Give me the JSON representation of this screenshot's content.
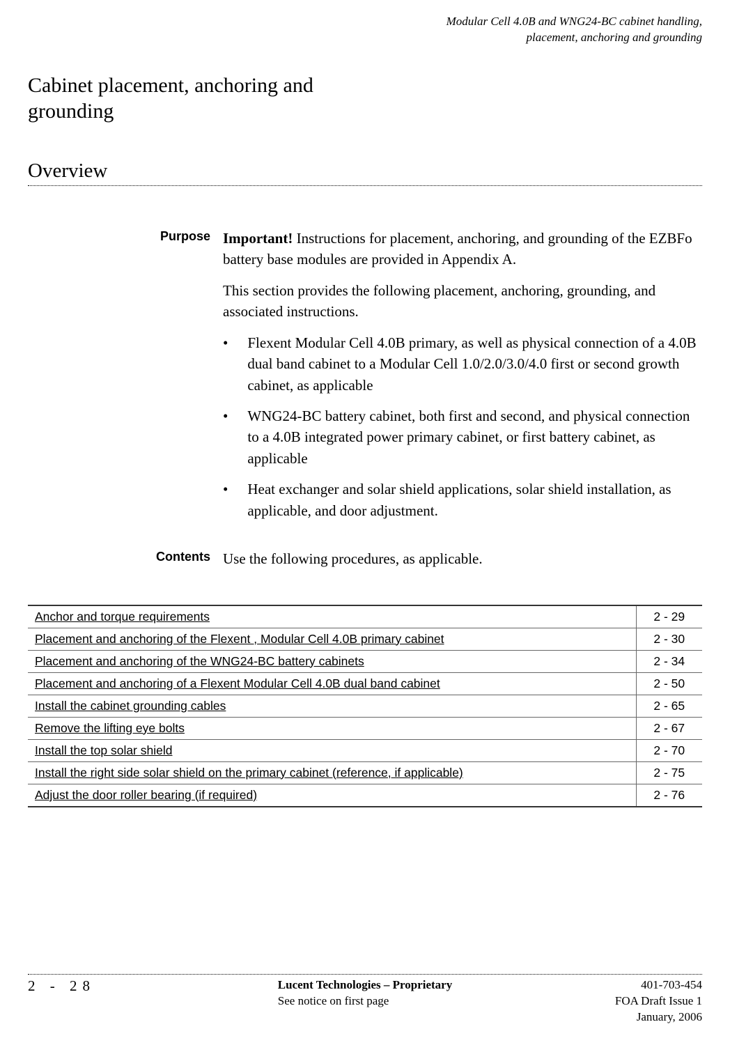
{
  "header": {
    "line1": "Modular Cell 4.0B and WNG24-BC cabinet handling,",
    "line2": "placement, anchoring and grounding"
  },
  "mainTitle": {
    "line1": "Cabinet placement, anchoring and",
    "line2": "grounding"
  },
  "overviewLabel": "Overview",
  "purpose": {
    "label": "Purpose",
    "importantLabel": "Important!",
    "importantText": " Instructions for placement, anchoring, and grounding of the EZBFo battery base modules are provided in Appendix A.",
    "intro": "This section provides the following placement, anchoring, grounding, and associated instructions.",
    "bullets": [
      "Flexent Modular Cell 4.0B primary, as well as physical connection of a 4.0B dual band cabinet to a Modular Cell 1.0/2.0/3.0/4.0 first or second growth cabinet, as applicable",
      "WNG24-BC battery cabinet, both first and second, and physical connection to a 4.0B integrated power primary cabinet, or first battery cabinet, as applicable",
      "Heat exchanger and solar shield applications, solar shield installation, as applicable, and door adjustment."
    ]
  },
  "contents": {
    "label": "Contents",
    "intro": "Use the following procedures, as applicable."
  },
  "toc": [
    {
      "title": "Anchor and torque requirements",
      "page": "2 - 29"
    },
    {
      "title": "Placement and anchoring of the Flexent , Modular Cell 4.0B primary cabinet",
      "page": "2 - 30"
    },
    {
      "title": "Placement and anchoring of the WNG24-BC battery cabinets",
      "page": "2 - 34"
    },
    {
      "title": "Placement and anchoring of a Flexent  Modular Cell 4.0B dual band cabinet",
      "page": "2 - 50"
    },
    {
      "title": "Install the cabinet grounding cables",
      "page": "2 - 65"
    },
    {
      "title": "Remove the lifting eye bolts",
      "page": "2 - 67"
    },
    {
      "title": "Install the top solar shield",
      "page": "2 - 70"
    },
    {
      "title": "Install the right side solar shield on the primary cabinet (reference, if applicable)",
      "page": "2 - 75"
    },
    {
      "title": "Adjust the door roller bearing (if required)",
      "page": "2 - 76"
    }
  ],
  "footer": {
    "pageNum": "2 - 28",
    "centerBold": "Lucent Technologies – Proprietary",
    "centerNote": "See notice on first page",
    "right1": "401-703-454",
    "right2": "FOA Draft Issue 1",
    "right3": "January, 2006"
  }
}
